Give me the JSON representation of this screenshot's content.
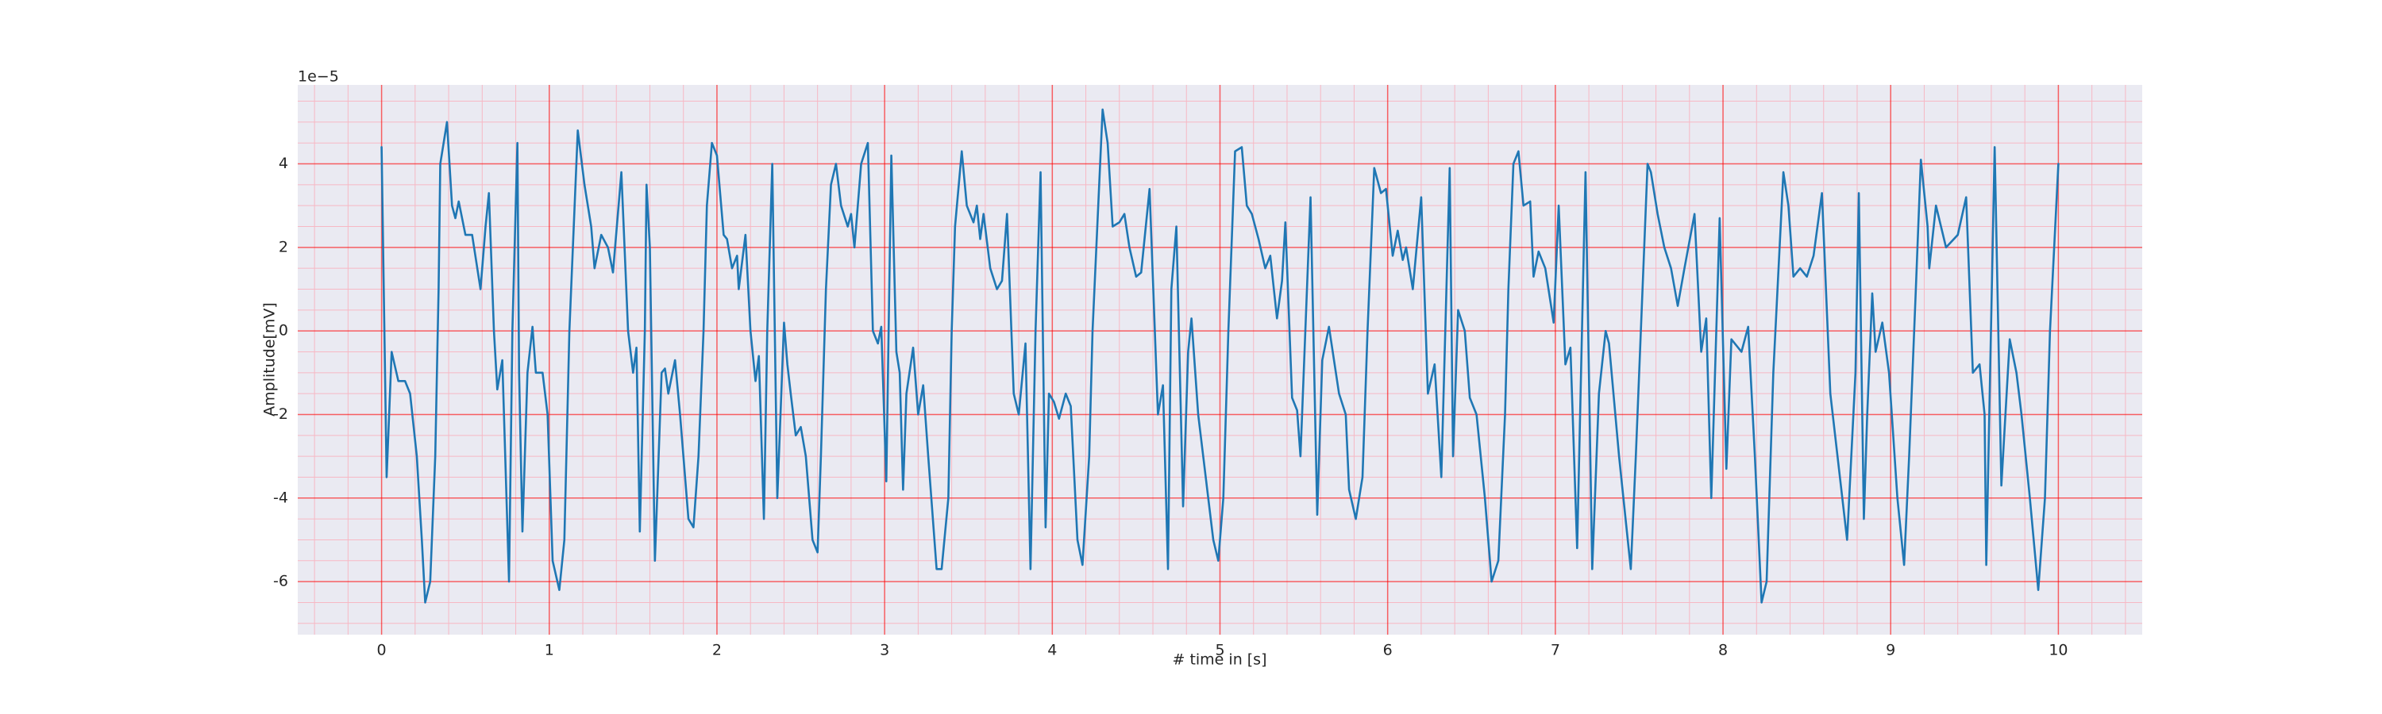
{
  "chart_data": {
    "type": "line",
    "xlabel": "# time in [s]",
    "ylabel": "Amplitude[mV]",
    "y_offset_label": "1e−5",
    "x": [
      0,
      0.03,
      0.06,
      0.1,
      0.14,
      0.17,
      0.21,
      0.24,
      0.26,
      0.29,
      0.32,
      0.34,
      0.35,
      0.39,
      0.42,
      0.44,
      0.46,
      0.5,
      0.54,
      0.59,
      0.62,
      0.64,
      0.67,
      0.69,
      0.72,
      0.76,
      0.78,
      0.81,
      0.82,
      0.84,
      0.87,
      0.9,
      0.92,
      0.96,
      0.99,
      1.02,
      1.06,
      1.09,
      1.12,
      1.17,
      1.21,
      1.25,
      1.27,
      1.31,
      1.35,
      1.38,
      1.43,
      1.47,
      1.5,
      1.52,
      1.54,
      1.57,
      1.58,
      1.6,
      1.63,
      1.67,
      1.69,
      1.71,
      1.75,
      1.78,
      1.83,
      1.86,
      1.89,
      1.92,
      1.94,
      1.97,
      2.0,
      2.04,
      2.06,
      2.09,
      2.12,
      2.13,
      2.17,
      2.2,
      2.23,
      2.25,
      2.28,
      2.3,
      2.33,
      2.36,
      2.4,
      2.42,
      2.44,
      2.47,
      2.5,
      2.53,
      2.57,
      2.6,
      2.62,
      2.65,
      2.68,
      2.71,
      2.74,
      2.78,
      2.8,
      2.82,
      2.86,
      2.9,
      2.93,
      2.96,
      2.98,
      3.01,
      3.04,
      3.07,
      3.09,
      3.11,
      3.13,
      3.17,
      3.2,
      3.23,
      3.26,
      3.31,
      3.34,
      3.38,
      3.4,
      3.42,
      3.46,
      3.49,
      3.53,
      3.55,
      3.57,
      3.59,
      3.63,
      3.67,
      3.7,
      3.73,
      3.77,
      3.8,
      3.84,
      3.87,
      3.9,
      3.93,
      3.96,
      3.98,
      4.01,
      4.04,
      4.08,
      4.11,
      4.15,
      4.18,
      4.22,
      4.24,
      4.3,
      4.33,
      4.36,
      4.4,
      4.43,
      4.46,
      4.5,
      4.53,
      4.58,
      4.63,
      4.66,
      4.69,
      4.71,
      4.74,
      4.78,
      4.81,
      4.83,
      4.87,
      4.9,
      4.96,
      4.99,
      5.02,
      5.05,
      5.09,
      5.13,
      5.16,
      5.19,
      5.23,
      5.27,
      5.3,
      5.34,
      5.37,
      5.39,
      5.43,
      5.46,
      5.48,
      5.54,
      5.58,
      5.61,
      5.65,
      5.71,
      5.75,
      5.77,
      5.81,
      5.85,
      5.88,
      5.92,
      5.96,
      5.99,
      6.03,
      6.06,
      6.09,
      6.11,
      6.15,
      6.2,
      6.24,
      6.28,
      6.32,
      6.37,
      6.39,
      6.42,
      6.46,
      6.49,
      6.53,
      6.58,
      6.62,
      6.66,
      6.7,
      6.72,
      6.75,
      6.78,
      6.81,
      6.85,
      6.87,
      6.9,
      6.94,
      6.99,
      7.02,
      7.06,
      7.09,
      7.13,
      7.18,
      7.22,
      7.26,
      7.3,
      7.32,
      7.38,
      7.45,
      7.48,
      7.52,
      7.55,
      7.57,
      7.61,
      7.65,
      7.69,
      7.73,
      7.77,
      7.83,
      7.87,
      7.9,
      7.93,
      7.98,
      8.02,
      8.05,
      8.11,
      8.15,
      8.19,
      8.23,
      8.26,
      8.3,
      8.36,
      8.39,
      8.42,
      8.46,
      8.5,
      8.54,
      8.59,
      8.64,
      8.74,
      8.79,
      8.81,
      8.84,
      8.86,
      8.89,
      8.91,
      8.95,
      8.99,
      9.04,
      9.08,
      9.11,
      9.15,
      9.18,
      9.22,
      9.23,
      9.27,
      9.33,
      9.4,
      9.45,
      9.49,
      9.53,
      9.56,
      9.57,
      9.62,
      9.66,
      9.71,
      9.75,
      9.78,
      9.83,
      9.88,
      9.92,
      9.95,
      10.0
    ],
    "series": [
      {
        "color": "#1f77b4",
        "values": [
          4.4,
          -3.5,
          -0.5,
          -1.2,
          -1.2,
          -1.5,
          -3,
          -5,
          -6.5,
          -6,
          -3,
          1,
          4,
          5,
          3,
          2.7,
          3.1,
          2.3,
          2.3,
          1,
          2.5,
          3.3,
          0,
          -1.4,
          -0.7,
          -6,
          0,
          4.5,
          -1,
          -4.8,
          -1,
          0.1,
          -1,
          -1,
          -2,
          -5.5,
          -6.2,
          -5,
          0,
          4.8,
          3.5,
          2.5,
          1.5,
          2.3,
          2,
          1.4,
          3.8,
          0,
          -1,
          -0.4,
          -4.8,
          0,
          3.5,
          2,
          -5.5,
          -1,
          -0.9,
          -1.5,
          -0.7,
          -2,
          -4.5,
          -4.7,
          -3,
          0,
          3,
          4.5,
          4.2,
          2.3,
          2.2,
          1.5,
          1.8,
          1,
          2.3,
          0,
          -1.2,
          -0.6,
          -4.5,
          0,
          4,
          -4,
          0.2,
          -0.8,
          -1.5,
          -2.5,
          -2.3,
          -3,
          -5,
          -5.3,
          -3,
          1,
          3.5,
          4,
          3,
          2.5,
          2.8,
          2,
          4,
          4.5,
          0,
          -0.3,
          0.1,
          -3.6,
          4.2,
          -0.5,
          -1,
          -3.8,
          -1.5,
          -0.4,
          -2,
          -1.3,
          -3,
          -5.7,
          -5.7,
          -4,
          0,
          2.5,
          4.3,
          3,
          2.6,
          3,
          2.2,
          2.8,
          1.5,
          1,
          1.2,
          2.8,
          -1.5,
          -2,
          -0.3,
          -5.7,
          0,
          3.8,
          -4.7,
          -1.5,
          -1.7,
          -2.1,
          -1.5,
          -1.8,
          -5,
          -5.6,
          -3,
          0,
          5.3,
          4.5,
          2.5,
          2.6,
          2.8,
          2,
          1.3,
          1.4,
          3.4,
          -2,
          -1.3,
          -5.7,
          1,
          2.5,
          -4.2,
          -0.5,
          0.3,
          -2,
          -3,
          -5,
          -5.5,
          -4,
          0,
          4.3,
          4.4,
          3,
          2.8,
          2.2,
          1.5,
          1.8,
          0.3,
          1.2,
          2.6,
          -1.6,
          -1.9,
          -3,
          3.2,
          -4.4,
          -0.7,
          0.1,
          -1.5,
          -2,
          -3.8,
          -4.5,
          -3.5,
          0,
          3.9,
          3.3,
          3.4,
          1.8,
          2.4,
          1.7,
          2,
          1,
          3.2,
          -1.5,
          -0.8,
          -3.5,
          3.9,
          -3,
          0.5,
          0,
          -1.6,
          -2,
          -4,
          -6,
          -5.5,
          -2,
          1,
          4,
          4.3,
          3,
          3.1,
          1.3,
          1.9,
          1.5,
          0.2,
          3,
          -0.8,
          -0.4,
          -5.2,
          3.8,
          -5.7,
          -1.5,
          0,
          -0.3,
          -3,
          -5.7,
          -3,
          1,
          4,
          3.8,
          2.8,
          2,
          1.5,
          0.6,
          1.5,
          2.8,
          -0.5,
          0.3,
          -4,
          2.7,
          -3.3,
          -0.2,
          -0.5,
          0.1,
          -3,
          -6.5,
          -6,
          -1,
          3.8,
          3,
          1.3,
          1.5,
          1.3,
          1.8,
          3.3,
          -1.5,
          -5,
          -1,
          3.3,
          -4.5,
          -2,
          0.9,
          -0.5,
          0.2,
          -1,
          -4,
          -5.6,
          -3,
          1,
          4.1,
          2.5,
          1.5,
          3,
          2,
          2.3,
          3.2,
          -1,
          -0.8,
          -2,
          -5.6,
          4.4,
          -3.7,
          -0.2,
          -1,
          -2,
          -4,
          -6.2,
          -4,
          0,
          4
        ]
      }
    ],
    "xlim": [
      -0.5,
      10.5
    ],
    "ylim": [
      -7.27,
      5.89
    ],
    "xticks": [
      0,
      1,
      2,
      3,
      4,
      5,
      6,
      7,
      8,
      9,
      10
    ],
    "yticks": [
      -6,
      -4,
      -2,
      0,
      2,
      4
    ],
    "xminorticks": [
      -0.4,
      -0.2,
      0.2,
      0.4,
      0.6,
      0.8,
      1.2,
      1.4,
      1.6,
      1.8,
      2.2,
      2.4,
      2.6,
      2.8,
      3.2,
      3.4,
      3.6,
      3.8,
      4.2,
      4.4,
      4.6,
      4.8,
      5.2,
      5.4,
      5.6,
      5.8,
      6.2,
      6.4,
      6.6,
      6.8,
      7.2,
      7.4,
      7.6,
      7.8,
      8.2,
      8.4,
      8.6,
      8.8,
      9.2,
      9.4,
      9.6,
      9.8,
      10.2,
      10.4
    ],
    "yminorticks": [
      -7,
      -6.5,
      -5.5,
      -5,
      -4.5,
      -3.5,
      -3,
      -2.5,
      -1.5,
      -1,
      -0.5,
      0.5,
      1,
      1.5,
      2.5,
      3,
      3.5,
      4.5,
      5,
      5.5
    ],
    "grid": true,
    "minor_grid": true,
    "background": "#eaeaf2",
    "grid_color": "#ff0000",
    "minor_grid_color": "#f7b8c4"
  }
}
